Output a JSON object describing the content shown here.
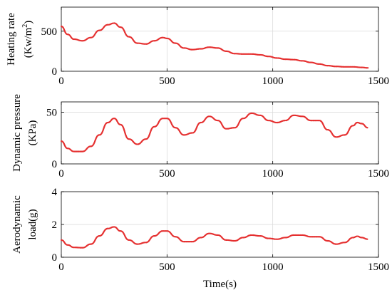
{
  "chart_data": [
    {
      "type": "line",
      "ylabel_lines": [
        "Heating rate",
        "(Kw/m",
        "2",
        ")"
      ],
      "xlim": [
        0,
        1500
      ],
      "ylim": [
        0,
        800
      ],
      "xticks": [
        0,
        500,
        1000,
        1500
      ],
      "yticks": [
        0,
        500
      ],
      "grid": true,
      "series": [
        {
          "color": "#e53030",
          "x": [
            0,
            30,
            60,
            100,
            140,
            180,
            220,
            250,
            280,
            320,
            360,
            400,
            440,
            480,
            500,
            540,
            580,
            620,
            660,
            700,
            740,
            780,
            820,
            860,
            900,
            940,
            980,
            1020,
            1060,
            1100,
            1140,
            1180,
            1220,
            1260,
            1300,
            1340,
            1380,
            1420,
            1450
          ],
          "y": [
            560,
            460,
            400,
            380,
            420,
            510,
            580,
            600,
            550,
            430,
            350,
            340,
            380,
            420,
            410,
            350,
            290,
            270,
            280,
            300,
            290,
            250,
            220,
            215,
            215,
            205,
            185,
            165,
            150,
            145,
            130,
            110,
            90,
            70,
            60,
            55,
            55,
            48,
            42
          ]
        }
      ]
    },
    {
      "type": "line",
      "ylabel_lines": [
        "Dynamic pressure",
        "(KPa)"
      ],
      "xlim": [
        0,
        1500
      ],
      "ylim": [
        0,
        60
      ],
      "xticks": [
        0,
        500,
        1000,
        1500
      ],
      "yticks": [
        0,
        50
      ],
      "grid": true,
      "series": [
        {
          "color": "#e53030",
          "x": [
            0,
            30,
            60,
            100,
            140,
            180,
            220,
            250,
            280,
            320,
            360,
            400,
            440,
            480,
            500,
            540,
            580,
            620,
            660,
            700,
            740,
            780,
            820,
            860,
            900,
            940,
            980,
            1020,
            1060,
            1100,
            1140,
            1180,
            1220,
            1260,
            1300,
            1340,
            1380,
            1400,
            1420,
            1450
          ],
          "y": [
            22,
            15,
            12,
            12,
            17,
            28,
            40,
            44,
            38,
            24,
            19,
            24,
            36,
            44,
            44,
            35,
            28,
            30,
            40,
            46,
            42,
            34,
            35,
            44,
            49,
            47,
            42,
            40,
            42,
            47,
            46,
            42,
            42,
            33,
            26,
            28,
            37,
            40,
            39,
            35
          ]
        }
      ]
    },
    {
      "type": "line",
      "ylabel_lines": [
        "Aerodynamic",
        "load(g)"
      ],
      "xlabel": "Time(s)",
      "xlim": [
        0,
        1500
      ],
      "ylim": [
        0,
        4
      ],
      "xticks": [
        0,
        500,
        1000,
        1500
      ],
      "yticks": [
        0,
        2,
        4
      ],
      "grid": true,
      "series": [
        {
          "color": "#e53030",
          "x": [
            0,
            30,
            60,
            100,
            140,
            180,
            220,
            250,
            280,
            320,
            360,
            400,
            440,
            480,
            500,
            540,
            580,
            620,
            660,
            700,
            740,
            780,
            820,
            860,
            900,
            940,
            980,
            1020,
            1060,
            1100,
            1140,
            1180,
            1220,
            1260,
            1300,
            1340,
            1380,
            1400,
            1420,
            1450
          ],
          "y": [
            1.05,
            0.75,
            0.6,
            0.58,
            0.8,
            1.3,
            1.75,
            1.85,
            1.6,
            1.05,
            0.8,
            0.9,
            1.3,
            1.6,
            1.6,
            1.25,
            0.95,
            0.95,
            1.2,
            1.45,
            1.35,
            1.05,
            1.0,
            1.2,
            1.35,
            1.3,
            1.15,
            1.1,
            1.2,
            1.35,
            1.35,
            1.25,
            1.25,
            1.0,
            0.8,
            0.9,
            1.2,
            1.28,
            1.2,
            1.1
          ]
        }
      ]
    }
  ]
}
